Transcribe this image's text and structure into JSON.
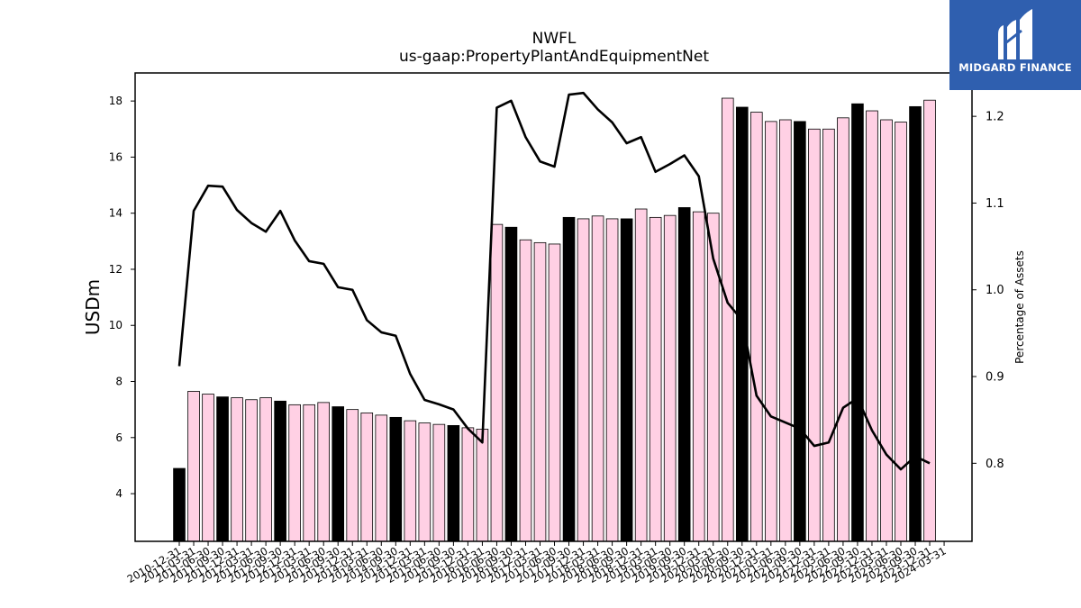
{
  "chart_data": {
    "type": "bar",
    "title": "NWFL",
    "subtitle": "us-gaap:PropertyPlantAndEquipmentNet",
    "ylabel": "USDm",
    "y2label": "Percentage of Assets",
    "ylim": [
      2.3,
      19.0
    ],
    "y2lim": [
      0.71,
      1.25
    ],
    "yticks": [
      4,
      6,
      8,
      10,
      12,
      14,
      16,
      18
    ],
    "y2ticks": [
      0.8,
      0.9,
      1.0,
      1.1,
      1.2
    ],
    "grid": false,
    "colors": {
      "annual": "#000000",
      "quarterly": "#ffd0e4",
      "line": "#000000"
    },
    "categories": [
      "2010-12-31",
      "2011-03-31",
      "2011-06-30",
      "2011-09-30",
      "2011-12-31",
      "2012-03-31",
      "2012-06-30",
      "2012-09-30",
      "2012-12-31",
      "2013-03-31",
      "2013-06-30",
      "2013-09-30",
      "2013-12-31",
      "2014-03-31",
      "2014-06-30",
      "2014-09-30",
      "2014-12-31",
      "2015-03-31",
      "2015-06-30",
      "2015-09-30",
      "2015-12-31",
      "2016-03-31",
      "2016-06-30",
      "2016-09-30",
      "2016-12-31",
      "2017-03-31",
      "2017-06-30",
      "2017-09-30",
      "2017-12-31",
      "2018-03-31",
      "2018-06-30",
      "2018-09-30",
      "2018-12-31",
      "2019-03-31",
      "2019-06-30",
      "2019-09-30",
      "2019-12-31",
      "2020-03-31",
      "2020-06-30",
      "2020-09-30",
      "2020-12-31",
      "2021-03-31",
      "2021-06-30",
      "2021-09-30",
      "2021-12-31",
      "2022-03-31",
      "2022-06-30",
      "2022-09-30",
      "2022-12-31",
      "2023-03-31",
      "2023-06-30",
      "2023-09-30",
      "2023-12-31",
      "2024-03-31"
    ],
    "series": [
      {
        "type": "bar",
        "values": [
          4.9,
          7.65,
          7.55,
          7.45,
          7.42,
          7.35,
          7.42,
          7.3,
          7.17,
          7.17,
          7.25,
          7.1,
          7.0,
          6.88,
          6.8,
          6.72,
          6.6,
          6.52,
          6.47,
          6.43,
          6.35,
          6.3,
          13.6,
          13.5,
          13.05,
          12.95,
          12.9,
          13.85,
          13.8,
          13.9,
          13.8,
          13.8,
          14.15,
          13.85,
          13.92,
          14.2,
          14.05,
          14.0,
          18.1,
          17.78,
          17.6,
          17.27,
          17.33,
          17.27,
          17.0,
          17.0,
          17.4,
          17.9,
          17.65,
          17.33,
          17.25,
          17.8,
          18.03,
          null
        ],
        "annual": [
          true,
          false,
          false,
          true,
          false,
          false,
          false,
          true,
          false,
          false,
          false,
          true,
          false,
          false,
          false,
          true,
          false,
          false,
          false,
          true,
          false,
          false,
          false,
          true,
          false,
          false,
          false,
          true,
          false,
          false,
          false,
          true,
          false,
          false,
          false,
          true,
          false,
          false,
          false,
          true,
          false,
          false,
          false,
          true,
          false,
          false,
          false,
          true,
          false,
          false,
          false,
          true,
          false,
          false
        ]
      },
      {
        "type": "line",
        "axis": "right",
        "values": [
          0.912,
          1.091,
          1.12,
          1.119,
          1.092,
          1.077,
          1.067,
          1.091,
          1.057,
          1.033,
          1.03,
          1.003,
          1.0,
          0.965,
          0.951,
          0.947,
          0.903,
          0.873,
          0.868,
          0.862,
          0.84,
          0.824,
          1.21,
          1.218,
          1.176,
          1.148,
          1.142,
          1.225,
          1.227,
          1.208,
          1.193,
          1.169,
          1.176,
          1.136,
          1.145,
          1.155,
          1.131,
          1.036,
          0.985,
          0.965,
          0.878,
          0.854,
          0.847,
          0.84,
          0.82,
          0.824,
          0.864,
          0.875,
          0.838,
          0.81,
          0.793,
          0.808,
          0.8,
          null
        ]
      }
    ]
  },
  "branding": {
    "logo_text": "MIDGARD FINANCE",
    "logo_color": "#2f5faf"
  }
}
